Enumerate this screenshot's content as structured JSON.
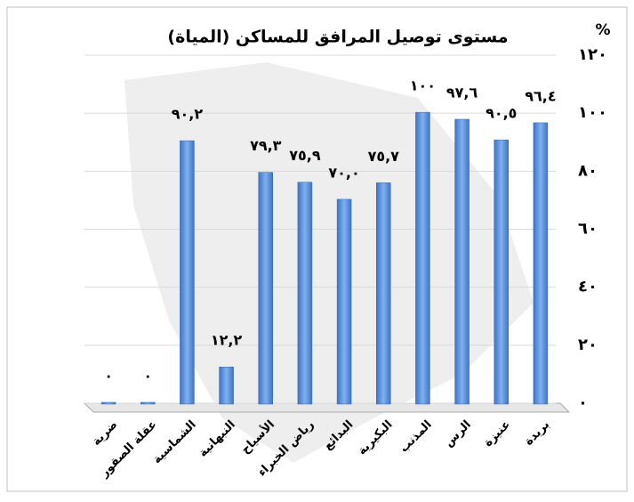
{
  "chart_data": {
    "type": "bar",
    "title": "مستوى توصيل المرافق للمساكن (المياة)",
    "y_axis_label": "%",
    "categories": [
      "ضرية",
      "عقلة الصقور",
      "الشماسية",
      "النبهانية",
      "الأسياح",
      "رياض الخبراء",
      "البدائع",
      "البكيرية",
      "المذنب",
      "الرس",
      "عنيزة",
      "بريدة"
    ],
    "values": [
      0,
      0,
      90.2,
      12.2,
      79.3,
      75.9,
      70,
      75.7,
      100,
      97.6,
      90.5,
      96.4
    ],
    "value_labels": [
      "٠",
      "٠",
      "٩٠,٢",
      "١٢,٢",
      "٧٩,٣",
      "٧٥,٩",
      "٧٠,٠",
      "٧٥,٧",
      "١٠٠",
      "٩٧,٦",
      "٩٠,٥",
      "٩٦,٤"
    ],
    "color": "#5b8fd8",
    "ylim": [
      0,
      120
    ],
    "yticks": [
      {
        "value": 0,
        "label": "٠"
      },
      {
        "value": 20,
        "label": "٢٠"
      },
      {
        "value": 40,
        "label": "٤٠"
      },
      {
        "value": 60,
        "label": "٦٠"
      },
      {
        "value": 80,
        "label": "٨٠"
      },
      {
        "value": 100,
        "label": "١٠٠"
      },
      {
        "value": 120,
        "label": "١٢٠"
      }
    ],
    "grid": true
  }
}
